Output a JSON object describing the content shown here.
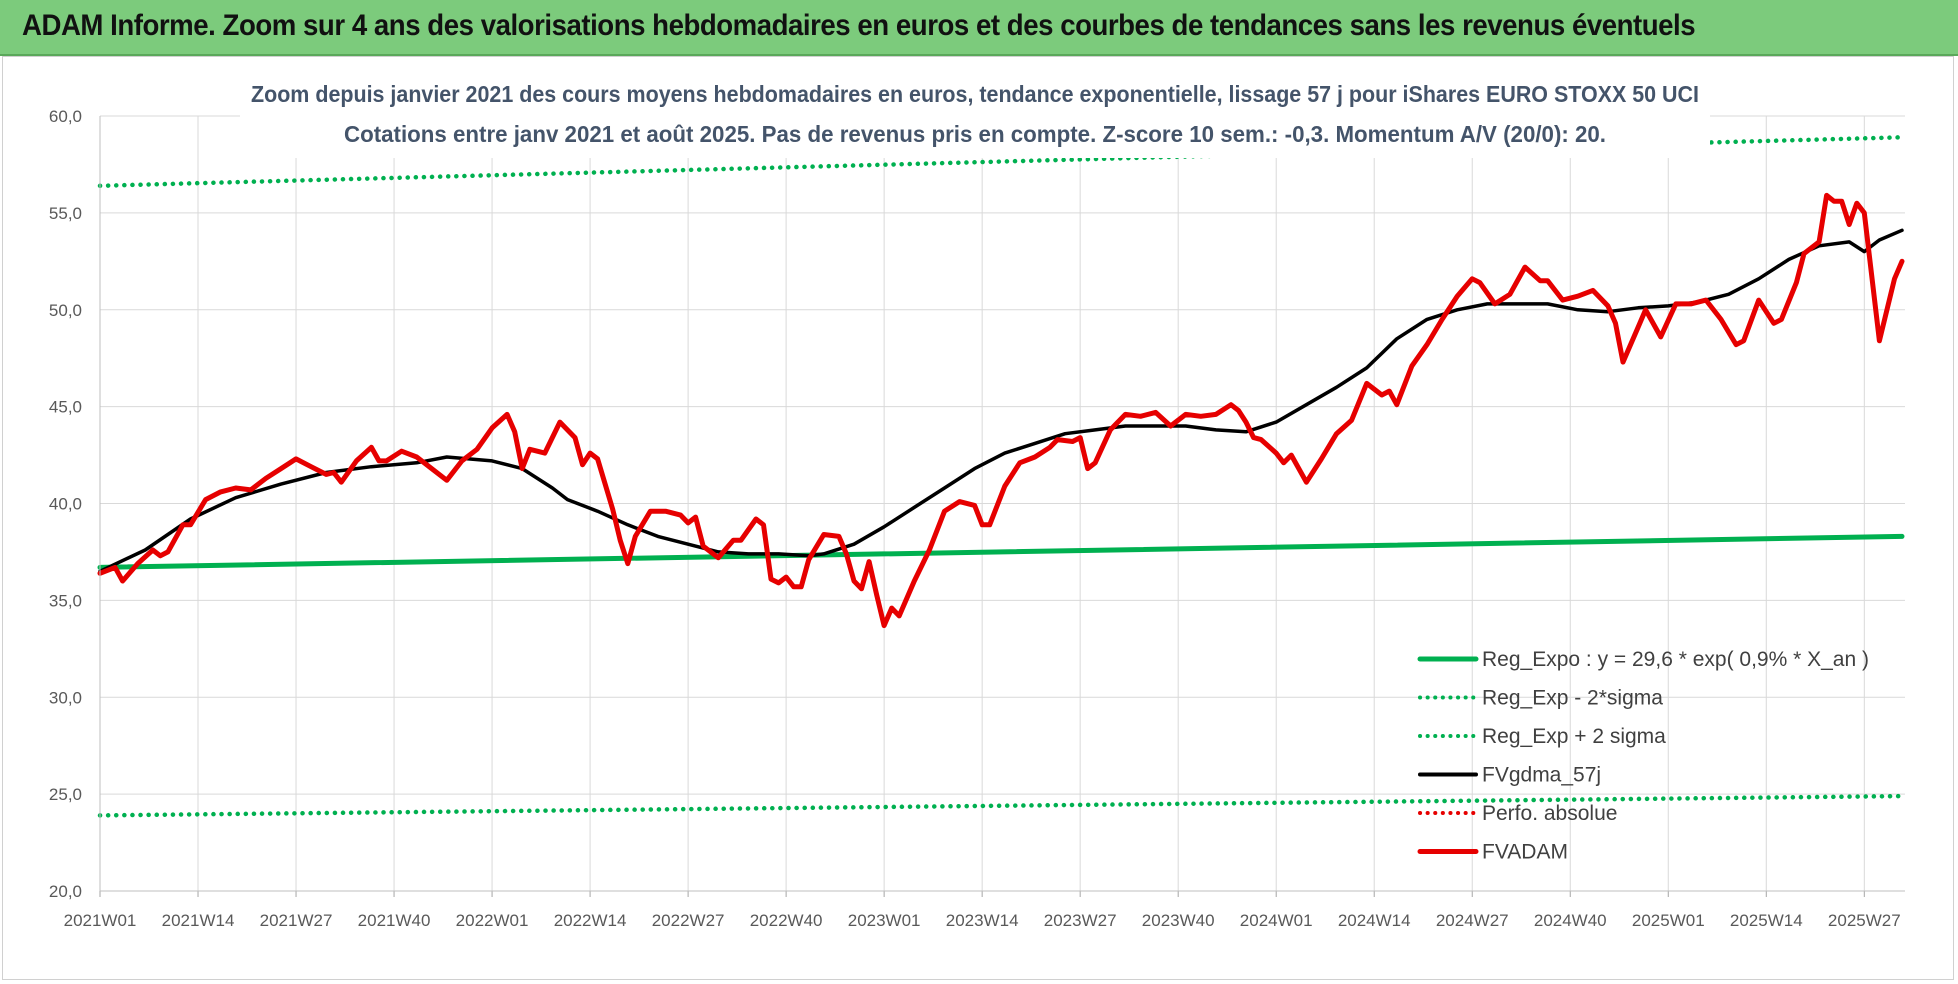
{
  "header": {
    "title": "ADAM Informe. Zoom sur 4 ans des valorisations hebdomadaires en euros et des courbes de tendances sans les revenus éventuels"
  },
  "colors": {
    "header_bg": "#7ccb7c",
    "reg_expo": "#00b050",
    "fvgdma": "#000000",
    "fvadam": "#e60000",
    "perfo": "#e60000",
    "grid": "#d9d9d9"
  },
  "chart_data": {
    "type": "line",
    "title": "Zoom depuis janvier 2021 des cours moyens hebdomadaires en euros, tendance exponentielle, lissage 57 j pour iShares EURO STOXX 50 UCI",
    "subtitle": "Cotations entre janv 2021 et août 2025.  Pas de revenus pris en compte.  Z-score 10 sem.: -0,3.  Momentum A/V (20/0): 20.",
    "ylim": [
      20,
      60
    ],
    "yticks": [
      "20,0",
      "25,0",
      "30,0",
      "35,0",
      "40,0",
      "45,0",
      "50,0",
      "55,0",
      "60,0"
    ],
    "ytick_values": [
      20,
      25,
      30,
      35,
      40,
      45,
      50,
      55,
      60
    ],
    "xticks": [
      "2021W01",
      "2021W14",
      "2021W27",
      "2021W40",
      "2022W01",
      "2022W14",
      "2022W27",
      "2022W40",
      "2023W01",
      "2023W14",
      "2023W27",
      "2023W40",
      "2024W01",
      "2024W14",
      "2024W27",
      "2024W40",
      "2025W01",
      "2025W14",
      "2025W27"
    ],
    "grid": true,
    "legend_position": "bottom-right",
    "n_weeks": 240,
    "series": [
      {
        "name": "Reg_Expo : y = 29,6 * exp( 0,9% *  X_an )",
        "style": "solid",
        "color": "#00b050",
        "points": [
          [
            0,
            36.7
          ],
          [
            239,
            38.3
          ]
        ]
      },
      {
        "name": "Reg_Exp - 2*sigma",
        "style": "dotted",
        "color": "#00b050",
        "points": [
          [
            0,
            23.9
          ],
          [
            239,
            24.9
          ]
        ]
      },
      {
        "name": "Reg_Exp + 2 sigma",
        "style": "dotted",
        "color": "#00b050",
        "points": [
          [
            0,
            56.4
          ],
          [
            239,
            58.9
          ]
        ]
      },
      {
        "name": "FVgdma_57j",
        "style": "solid",
        "color": "#000000",
        "points": [
          [
            0,
            36.5
          ],
          [
            6,
            37.6
          ],
          [
            12,
            39.2
          ],
          [
            18,
            40.3
          ],
          [
            24,
            41.0
          ],
          [
            30,
            41.6
          ],
          [
            36,
            41.9
          ],
          [
            42,
            42.1
          ],
          [
            46,
            42.4
          ],
          [
            52,
            42.2
          ],
          [
            56,
            41.8
          ],
          [
            60,
            40.8
          ],
          [
            62,
            40.2
          ],
          [
            66,
            39.6
          ],
          [
            70,
            38.9
          ],
          [
            74,
            38.3
          ],
          [
            78,
            37.9
          ],
          [
            82,
            37.5
          ],
          [
            86,
            37.4
          ],
          [
            90,
            37.4
          ],
          [
            94,
            37.3
          ],
          [
            96,
            37.4
          ],
          [
            100,
            37.9
          ],
          [
            104,
            38.8
          ],
          [
            108,
            39.8
          ],
          [
            112,
            40.8
          ],
          [
            116,
            41.8
          ],
          [
            120,
            42.6
          ],
          [
            124,
            43.1
          ],
          [
            128,
            43.6
          ],
          [
            132,
            43.8
          ],
          [
            136,
            44.0
          ],
          [
            140,
            44.0
          ],
          [
            144,
            44.0
          ],
          [
            148,
            43.8
          ],
          [
            152,
            43.7
          ],
          [
            156,
            44.2
          ],
          [
            160,
            45.1
          ],
          [
            164,
            46.0
          ],
          [
            168,
            47.0
          ],
          [
            172,
            48.5
          ],
          [
            176,
            49.5
          ],
          [
            180,
            50.0
          ],
          [
            184,
            50.3
          ],
          [
            188,
            50.3
          ],
          [
            192,
            50.3
          ],
          [
            196,
            50.0
          ],
          [
            200,
            49.9
          ],
          [
            204,
            50.1
          ],
          [
            208,
            50.2
          ],
          [
            212,
            50.4
          ],
          [
            216,
            50.8
          ],
          [
            220,
            51.6
          ],
          [
            224,
            52.6
          ],
          [
            228,
            53.3
          ],
          [
            232,
            53.5
          ],
          [
            234,
            53.0
          ],
          [
            236,
            53.6
          ],
          [
            239,
            54.1
          ]
        ]
      },
      {
        "name": "Perfo. absolue",
        "style": "dotted",
        "color": "#e60000",
        "points": []
      },
      {
        "name": "FVADAM",
        "style": "solid",
        "color": "#e60000",
        "points": [
          [
            0,
            36.4
          ],
          [
            2,
            36.7
          ],
          [
            3,
            36.0
          ],
          [
            5,
            36.9
          ],
          [
            7,
            37.6
          ],
          [
            8,
            37.3
          ],
          [
            9,
            37.5
          ],
          [
            11,
            38.9
          ],
          [
            12,
            38.9
          ],
          [
            14,
            40.2
          ],
          [
            16,
            40.6
          ],
          [
            18,
            40.8
          ],
          [
            20,
            40.7
          ],
          [
            22,
            41.3
          ],
          [
            24,
            41.8
          ],
          [
            26,
            42.3
          ],
          [
            28,
            41.9
          ],
          [
            30,
            41.5
          ],
          [
            31,
            41.6
          ],
          [
            32,
            41.1
          ],
          [
            34,
            42.2
          ],
          [
            36,
            42.9
          ],
          [
            37,
            42.2
          ],
          [
            38,
            42.2
          ],
          [
            40,
            42.7
          ],
          [
            42,
            42.4
          ],
          [
            44,
            41.8
          ],
          [
            46,
            41.2
          ],
          [
            48,
            42.2
          ],
          [
            50,
            42.8
          ],
          [
            52,
            43.9
          ],
          [
            54,
            44.6
          ],
          [
            55,
            43.7
          ],
          [
            56,
            41.8
          ],
          [
            57,
            42.8
          ],
          [
            59,
            42.6
          ],
          [
            61,
            44.2
          ],
          [
            63,
            43.4
          ],
          [
            64,
            42.0
          ],
          [
            65,
            42.6
          ],
          [
            66,
            42.3
          ],
          [
            68,
            39.7
          ],
          [
            69,
            38.1
          ],
          [
            70,
            36.9
          ],
          [
            71,
            38.3
          ],
          [
            73,
            39.6
          ],
          [
            75,
            39.6
          ],
          [
            77,
            39.4
          ],
          [
            78,
            39.0
          ],
          [
            79,
            39.3
          ],
          [
            80,
            37.8
          ],
          [
            82,
            37.2
          ],
          [
            84,
            38.1
          ],
          [
            85,
            38.1
          ],
          [
            87,
            39.2
          ],
          [
            88,
            38.9
          ],
          [
            89,
            36.1
          ],
          [
            90,
            35.9
          ],
          [
            91,
            36.2
          ],
          [
            92,
            35.7
          ],
          [
            93,
            35.7
          ],
          [
            94,
            37.1
          ],
          [
            96,
            38.4
          ],
          [
            98,
            38.3
          ],
          [
            99,
            37.4
          ],
          [
            100,
            36.0
          ],
          [
            101,
            35.6
          ],
          [
            102,
            37.0
          ],
          [
            103,
            35.3
          ],
          [
            104,
            33.7
          ],
          [
            105,
            34.6
          ],
          [
            106,
            34.2
          ],
          [
            108,
            36.0
          ],
          [
            110,
            37.6
          ],
          [
            112,
            39.6
          ],
          [
            114,
            40.1
          ],
          [
            116,
            39.9
          ],
          [
            117,
            38.9
          ],
          [
            118,
            38.9
          ],
          [
            120,
            40.9
          ],
          [
            122,
            42.1
          ],
          [
            124,
            42.4
          ],
          [
            126,
            42.9
          ],
          [
            127,
            43.3
          ],
          [
            129,
            43.2
          ],
          [
            130,
            43.4
          ],
          [
            131,
            41.8
          ],
          [
            132,
            42.1
          ],
          [
            134,
            43.8
          ],
          [
            136,
            44.6
          ],
          [
            138,
            44.5
          ],
          [
            140,
            44.7
          ],
          [
            142,
            44.0
          ],
          [
            144,
            44.6
          ],
          [
            146,
            44.5
          ],
          [
            148,
            44.6
          ],
          [
            150,
            45.1
          ],
          [
            151,
            44.8
          ],
          [
            152,
            44.2
          ],
          [
            153,
            43.4
          ],
          [
            154,
            43.3
          ],
          [
            156,
            42.6
          ],
          [
            157,
            42.1
          ],
          [
            158,
            42.5
          ],
          [
            160,
            41.1
          ],
          [
            162,
            42.3
          ],
          [
            164,
            43.6
          ],
          [
            166,
            44.3
          ],
          [
            168,
            46.2
          ],
          [
            170,
            45.6
          ],
          [
            171,
            45.8
          ],
          [
            172,
            45.1
          ],
          [
            174,
            47.1
          ],
          [
            176,
            48.2
          ],
          [
            178,
            49.5
          ],
          [
            180,
            50.7
          ],
          [
            182,
            51.6
          ],
          [
            183,
            51.4
          ],
          [
            185,
            50.3
          ],
          [
            187,
            50.8
          ],
          [
            189,
            52.2
          ],
          [
            191,
            51.5
          ],
          [
            192,
            51.5
          ],
          [
            194,
            50.5
          ],
          [
            196,
            50.7
          ],
          [
            198,
            51.0
          ],
          [
            200,
            50.2
          ],
          [
            201,
            49.3
          ],
          [
            202,
            47.3
          ],
          [
            204,
            49.1
          ],
          [
            205,
            50.0
          ],
          [
            207,
            48.6
          ],
          [
            209,
            50.3
          ],
          [
            211,
            50.3
          ],
          [
            213,
            50.5
          ],
          [
            215,
            49.5
          ],
          [
            217,
            48.2
          ],
          [
            218,
            48.4
          ],
          [
            220,
            50.5
          ],
          [
            222,
            49.3
          ],
          [
            223,
            49.5
          ],
          [
            225,
            51.4
          ],
          [
            226,
            52.9
          ],
          [
            228,
            53.5
          ],
          [
            229,
            55.9
          ],
          [
            230,
            55.6
          ],
          [
            231,
            55.6
          ],
          [
            232,
            54.4
          ],
          [
            233,
            55.5
          ],
          [
            234,
            55.0
          ],
          [
            236,
            48.4
          ],
          [
            238,
            51.6
          ],
          [
            239,
            52.5
          ]
        ]
      }
    ]
  }
}
